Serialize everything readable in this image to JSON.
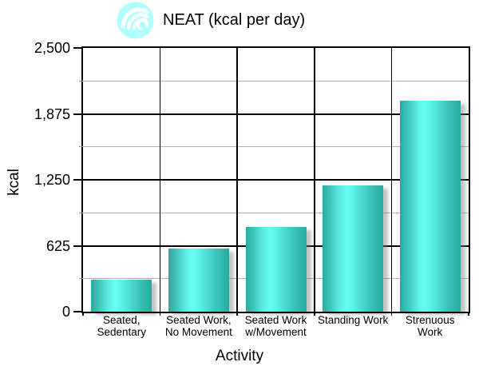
{
  "header": {
    "title": "NEAT (kcal per day)",
    "icon": "wave-swirl-icon",
    "icon_color": "#b0ffff"
  },
  "chart_data": {
    "type": "bar",
    "title": "NEAT (kcal per day)",
    "categories": [
      "Seated, Sedentary",
      "Seated Work, No Movement",
      "Seated Work w/Movement",
      "Standing Work",
      "Strenuous Work"
    ],
    "category_lines": [
      [
        "Seated,",
        "Sedentary"
      ],
      [
        "Seated Work,",
        "No Movement"
      ],
      [
        "Seated Work",
        "w/Movement"
      ],
      [
        "Standing Work"
      ],
      [
        "Strenuous",
        "Work"
      ]
    ],
    "values": [
      300,
      600,
      800,
      1200,
      2000
    ],
    "xlabel": "Activity",
    "ylabel": "kcal",
    "ylim": [
      0,
      2500
    ],
    "ytick_values": [
      0,
      625,
      1250,
      1875,
      2500
    ],
    "ytick_labels": [
      "0",
      "625",
      "1,250",
      "1,875",
      "2,500"
    ],
    "minor_tick_step": 312.5,
    "grid": "horizontal major (black) + minor (gray), vertical black lines at category boundaries",
    "legend": false,
    "colors": {
      "bar_edge": "#2fb0a6",
      "bar_center": "#67fff6",
      "major_grid": "#000000",
      "minor_grid": "#b2b2b2",
      "shadow": "#7d7d7d",
      "background": "#ffffff",
      "text": "#000000"
    }
  }
}
